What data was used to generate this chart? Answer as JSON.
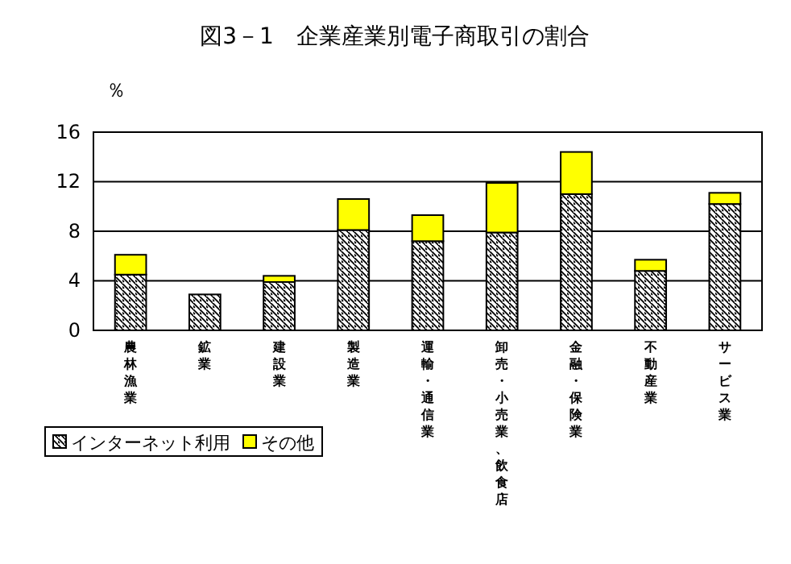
{
  "chart_data": {
    "type": "bar",
    "title": "図3－1　企業産業別電子商取引の割合",
    "ylabel": "％",
    "categories": [
      "農林漁業",
      "鉱業",
      "建設業",
      "製造業",
      "運輸・通信業",
      "卸売・小売業、飲食店",
      "金融・保険業",
      "不動産業",
      "サービス業"
    ],
    "stacked": true,
    "series": [
      {
        "name": "インターネット利用",
        "color": "#000000",
        "values": [
          4.5,
          2.9,
          3.9,
          8.1,
          7.2,
          7.9,
          11.0,
          4.8,
          10.2
        ]
      },
      {
        "name": "その他",
        "color": "#ffff00",
        "values": [
          1.6,
          null,
          0.5,
          2.5,
          2.1,
          4.0,
          3.4,
          0.9,
          0.9
        ]
      }
    ],
    "ylim": [
      0,
      16
    ],
    "yticks": [
      0,
      4,
      8,
      12,
      16
    ],
    "grid": "y",
    "legend": "bottom left"
  }
}
